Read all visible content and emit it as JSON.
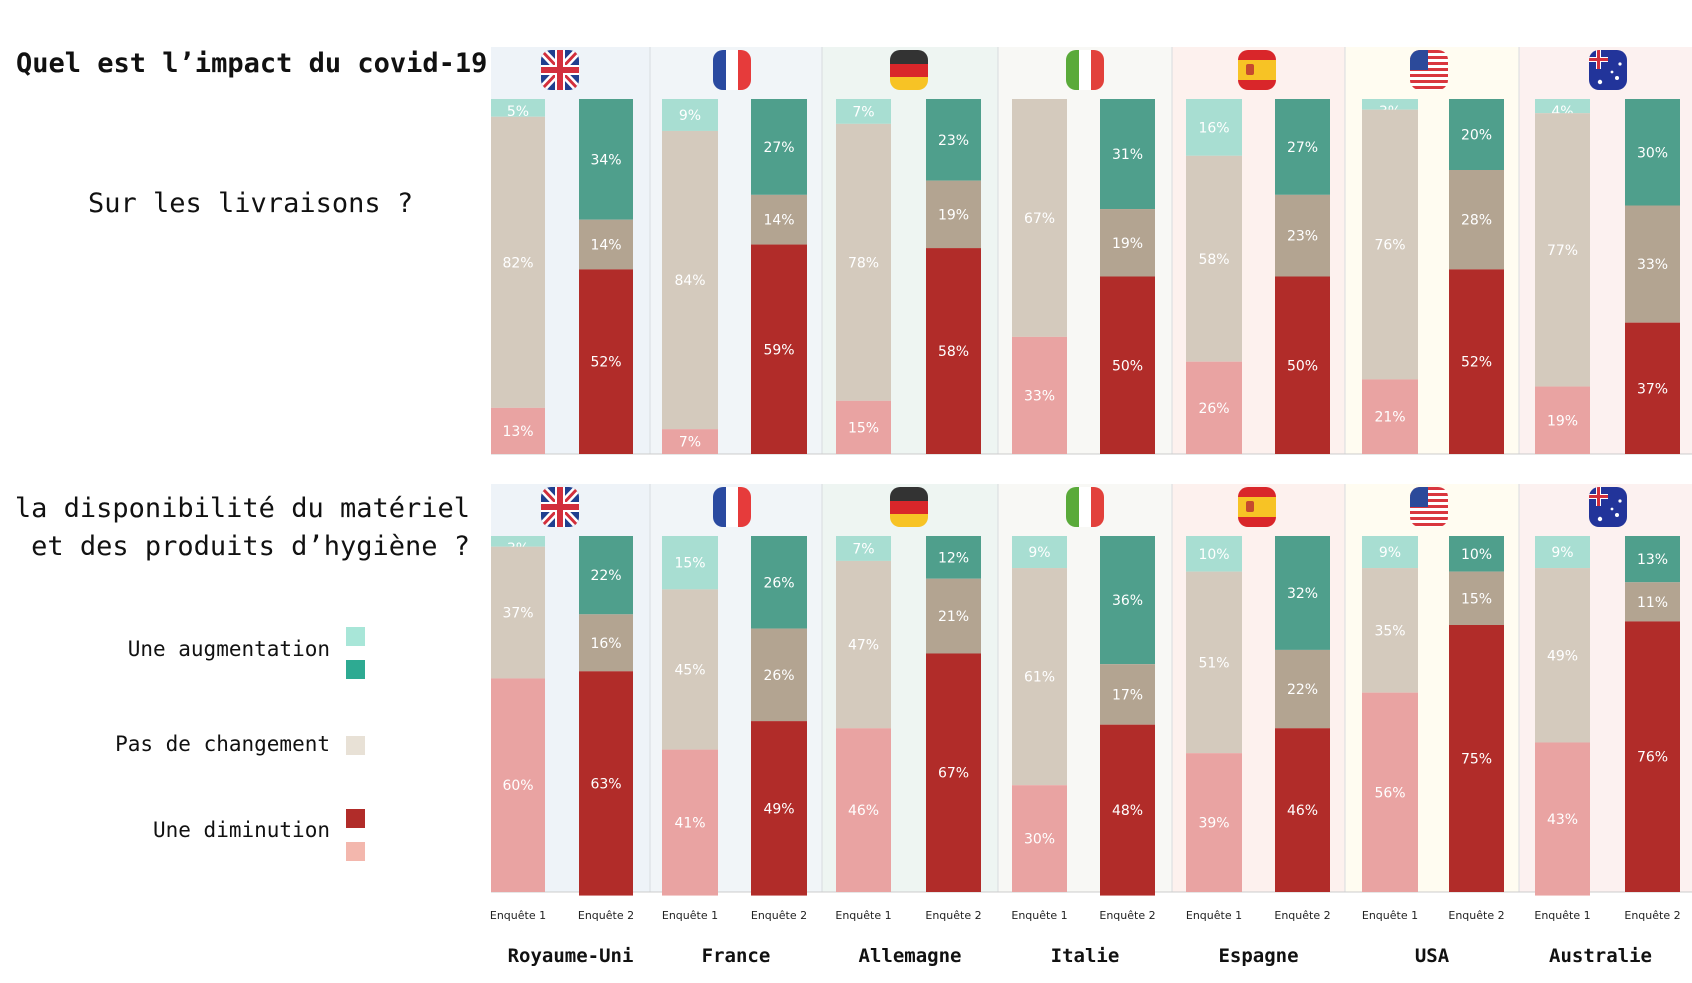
{
  "title": "Quel est l’impact du covid-19 :",
  "q1": "Sur les livraisons ?",
  "q2_line1": "Sur la disponibilité du matériel",
  "q2_line2": "et des produits d’hygiène ?",
  "legend": {
    "increase": "Une augmentation",
    "nochange": "Pas de changement",
    "decrease": "Une diminution"
  },
  "colors": {
    "inc_light": "#a8ded2",
    "inc_dark": "#4f9f8c",
    "nochange_light": "#d4cabd",
    "nochange_dark": "#b3a491",
    "dec_light": "#e9a3a2",
    "dec_dark": "#b12c29"
  },
  "chart_data": [
    {
      "type": "bar",
      "stacked": true,
      "title": "Sur les livraisons ?",
      "categories": [
        "Royaume-Uni",
        "France",
        "Allemagne",
        "Italie",
        "Espagne",
        "USA",
        "Australie"
      ],
      "surveys": [
        "Enquête 1",
        "Enquête 2"
      ],
      "series": [
        {
          "name": "Une augmentation",
          "enquete1": [
            5,
            9,
            7,
            0,
            16,
            3,
            4
          ],
          "enquete2": [
            34,
            27,
            23,
            31,
            27,
            20,
            30
          ]
        },
        {
          "name": "Pas de changement",
          "enquete1": [
            82,
            84,
            78,
            67,
            58,
            76,
            77
          ],
          "enquete2": [
            14,
            14,
            19,
            19,
            23,
            28,
            33
          ]
        },
        {
          "name": "Une diminution",
          "enquete1": [
            13,
            7,
            15,
            33,
            26,
            21,
            19
          ],
          "enquete2": [
            52,
            59,
            58,
            50,
            50,
            52,
            37
          ]
        }
      ]
    },
    {
      "type": "bar",
      "stacked": true,
      "title": "Sur la disponibilité du matériel et des produits d’hygiène ?",
      "categories": [
        "Royaume-Uni",
        "France",
        "Allemagne",
        "Italie",
        "Espagne",
        "USA",
        "Australie"
      ],
      "surveys": [
        "Enquête 1",
        "Enquête 2"
      ],
      "series": [
        {
          "name": "Une augmentation",
          "enquete1": [
            3,
            15,
            7,
            9,
            10,
            9,
            9
          ],
          "enquete2": [
            22,
            26,
            12,
            36,
            32,
            10,
            13
          ]
        },
        {
          "name": "Pas de changement",
          "enquete1": [
            37,
            45,
            47,
            61,
            51,
            35,
            49
          ],
          "enquete2": [
            16,
            26,
            21,
            17,
            22,
            15,
            11
          ]
        },
        {
          "name": "Une diminution",
          "enquete1": [
            60,
            41,
            46,
            30,
            39,
            56,
            43
          ],
          "enquete2": [
            63,
            49,
            67,
            48,
            46,
            75,
            76
          ]
        }
      ]
    }
  ],
  "flags": [
    "uk-flag-icon",
    "france-flag-icon",
    "germany-flag-icon",
    "italy-flag-icon",
    "spain-flag-icon",
    "usa-flag-icon",
    "australia-flag-icon"
  ]
}
